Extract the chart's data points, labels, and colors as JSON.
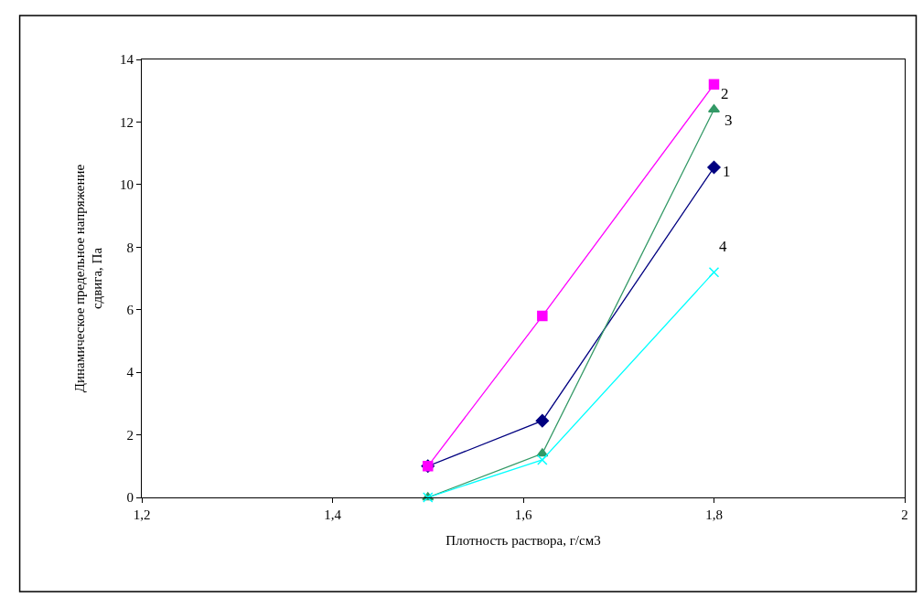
{
  "chart_data": {
    "type": "line",
    "xlabel": "Плотность раствора, г/см3",
    "ylabel": "Динамическое предельное напряжение сдвига, Па",
    "x": [
      1.5,
      1.62,
      1.8
    ],
    "series": [
      {
        "name": "1",
        "color": "#000080",
        "marker": "diamond",
        "values": [
          1.0,
          2.45,
          10.55
        ]
      },
      {
        "name": "2",
        "color": "#ff00ff",
        "marker": "square",
        "values": [
          1.0,
          5.8,
          13.2
        ]
      },
      {
        "name": "3",
        "color": "#339966",
        "marker": "triangle",
        "values": [
          0,
          1.4,
          12.4
        ]
      },
      {
        "name": "4",
        "color": "#00ffff",
        "marker": "cross",
        "values": [
          0,
          1.2,
          7.2
        ]
      }
    ],
    "xlim": [
      1.2,
      2
    ],
    "xticks": [
      {
        "value": 1.2,
        "label": "1,2"
      },
      {
        "value": 1.4,
        "label": "1,4"
      },
      {
        "value": 1.6,
        "label": "1,6"
      },
      {
        "value": 1.8,
        "label": "1,8"
      },
      {
        "value": 2,
        "label": "2"
      }
    ],
    "ylim": [
      0,
      14
    ],
    "yticks": [
      0,
      2,
      4,
      6,
      8,
      10,
      12,
      14
    ],
    "legend": false
  }
}
